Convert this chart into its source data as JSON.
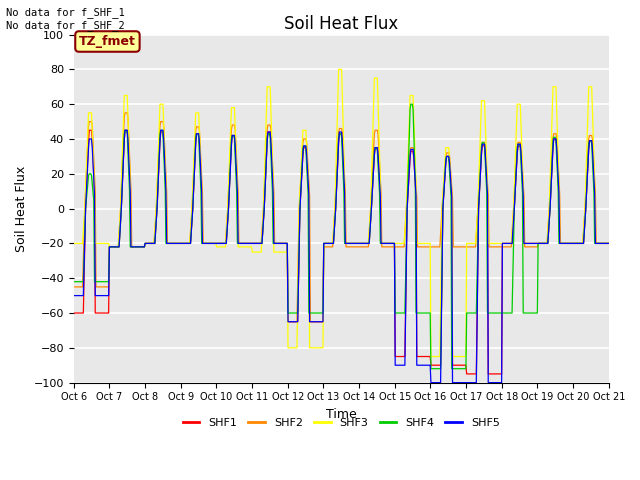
{
  "title": "Soil Heat Flux",
  "ylabel": "Soil Heat Flux",
  "xlabel": "Time",
  "ylim": [
    -100,
    100
  ],
  "yticks": [
    -100,
    -80,
    -60,
    -40,
    -20,
    0,
    20,
    40,
    60,
    80,
    100
  ],
  "xtick_labels": [
    "Oct 6",
    "Oct 7",
    "Oct 8",
    "Oct 9",
    "Oct 10",
    "Oct 11",
    "Oct 12",
    "Oct 13",
    "Oct 14",
    "Oct 15",
    "Oct 16",
    "Oct 17",
    "Oct 18",
    "Oct 19",
    "Oct 20",
    "Oct 21"
  ],
  "series_colors": [
    "#ff0000",
    "#ff8800",
    "#ffff00",
    "#00cc00",
    "#0000ff"
  ],
  "series_names": [
    "SHF1",
    "SHF2",
    "SHF3",
    "SHF4",
    "SHF5"
  ],
  "annotation1": "No data for f_SHF_1",
  "annotation2": "No data for f_SHF_2",
  "legend_label": "TZ_fmet",
  "fig_facecolor": "#ffffff",
  "plot_facecolor": "#e8e8e8",
  "title_fontsize": 12,
  "axis_fontsize": 9,
  "n_days": 15,
  "n_per_day": 48,
  "day_peak_amps_shf3": [
    55,
    65,
    60,
    55,
    58,
    70,
    45,
    80,
    75,
    65,
    35,
    62,
    60,
    70,
    70
  ],
  "day_trough_shf3": [
    -20,
    -22,
    -20,
    -20,
    -22,
    -25,
    -80,
    -20,
    -20,
    -20,
    -85,
    -20,
    -20,
    -20,
    -20
  ],
  "day_peak_amps_shf1": [
    45,
    45,
    44,
    43,
    42,
    44,
    35,
    43,
    35,
    33,
    30,
    36,
    36,
    40,
    39
  ],
  "day_trough_shf1": [
    -60,
    -22,
    -20,
    -20,
    -20,
    -20,
    -65,
    -20,
    -20,
    -85,
    -90,
    -95,
    -20,
    -20,
    -20
  ],
  "day_peak_amps_shf2": [
    50,
    55,
    50,
    47,
    48,
    48,
    40,
    46,
    45,
    35,
    32,
    38,
    38,
    43,
    42
  ],
  "day_trough_shf2": [
    -45,
    -22,
    -20,
    -20,
    -20,
    -20,
    -65,
    -22,
    -22,
    -22,
    -22,
    -22,
    -22,
    -20,
    -20
  ],
  "day_peak_amps_shf4": [
    20,
    45,
    45,
    43,
    42,
    43,
    36,
    43,
    35,
    60,
    30,
    38,
    37,
    41,
    39
  ],
  "day_trough_shf4": [
    -42,
    -22,
    -20,
    -20,
    -20,
    -20,
    -60,
    -20,
    -20,
    -60,
    -92,
    -60,
    -60,
    -20,
    -20
  ],
  "day_peak_amps_shf5": [
    40,
    45,
    45,
    43,
    42,
    44,
    36,
    44,
    35,
    34,
    30,
    37,
    37,
    40,
    39
  ],
  "day_trough_shf5": [
    -50,
    -22,
    -20,
    -20,
    -20,
    -20,
    -65,
    -20,
    -20,
    -90,
    -100,
    -100,
    -20,
    -20,
    -20
  ]
}
